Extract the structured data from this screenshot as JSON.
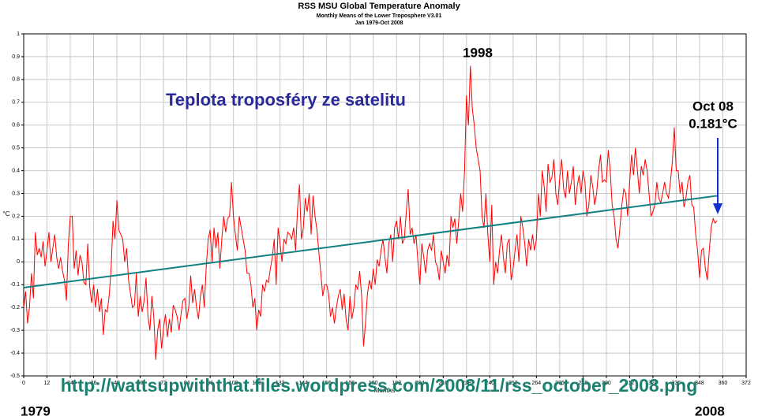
{
  "chart_data": {
    "type": "line",
    "title": "RSS MSU Global Temperature Anomaly",
    "subtitle": "Monthly Means of the Lower Troposphere V3.01",
    "date_range": "Jan 1979-Oct 2008",
    "xlabel": "Months",
    "ylabel": "°C",
    "annotations": [
      "Teplota troposféry ze satelitu",
      "1998",
      "Oct 08",
      "0.181°C",
      "http://wattsupwiththat.files.wordpress.com/2008/11/rss_october_2008.png",
      "1979",
      "2008"
    ],
    "xlim": [
      0,
      372
    ],
    "ylim": [
      -0.5,
      1
    ],
    "grid": true,
    "xticks": [
      0,
      12,
      24,
      36,
      48,
      60,
      72,
      84,
      96,
      108,
      120,
      132,
      144,
      156,
      168,
      180,
      192,
      204,
      216,
      228,
      240,
      252,
      264,
      276,
      288,
      300,
      312,
      324,
      336,
      348,
      360,
      372
    ],
    "yticks": [
      -0.5,
      -0.4,
      -0.3,
      -0.2,
      -0.1,
      0,
      0.1,
      0.2,
      0.3,
      0.4,
      0.5,
      0.6,
      0.7,
      0.8,
      0.9,
      1
    ],
    "x": [
      0,
      1,
      2,
      3,
      4,
      5,
      6,
      7,
      8,
      9,
      10,
      11,
      12,
      13,
      14,
      15,
      16,
      17,
      18,
      19,
      20,
      21,
      22,
      23,
      24,
      25,
      26,
      27,
      28,
      29,
      30,
      31,
      32,
      33,
      34,
      35,
      36,
      37,
      38,
      39,
      40,
      41,
      42,
      43,
      44,
      45,
      46,
      47,
      48,
      49,
      50,
      51,
      52,
      53,
      54,
      55,
      56,
      57,
      58,
      59,
      60,
      61,
      62,
      63,
      64,
      65,
      66,
      67,
      68,
      69,
      70,
      71,
      72,
      73,
      74,
      75,
      76,
      77,
      78,
      79,
      80,
      81,
      82,
      83,
      84,
      85,
      86,
      87,
      88,
      89,
      90,
      91,
      92,
      93,
      94,
      95,
      96,
      97,
      98,
      99,
      100,
      101,
      102,
      103,
      104,
      105,
      106,
      107,
      108,
      109,
      110,
      111,
      112,
      113,
      114,
      115,
      116,
      117,
      118,
      119,
      120,
      121,
      122,
      123,
      124,
      125,
      126,
      127,
      128,
      129,
      130,
      131,
      132,
      133,
      134,
      135,
      136,
      137,
      138,
      139,
      140,
      141,
      142,
      143,
      144,
      145,
      146,
      147,
      148,
      149,
      150,
      151,
      152,
      153,
      154,
      155,
      156,
      157,
      158,
      159,
      160,
      161,
      162,
      163,
      164,
      165,
      166,
      167,
      168,
      169,
      170,
      171,
      172,
      173,
      174,
      175,
      176,
      177,
      178,
      179,
      180,
      181,
      182,
      183,
      184,
      185,
      186,
      187,
      188,
      189,
      190,
      191,
      192,
      193,
      194,
      195,
      196,
      197,
      198,
      199,
      200,
      201,
      202,
      203,
      204,
      205,
      206,
      207,
      208,
      209,
      210,
      211,
      212,
      213,
      214,
      215,
      216,
      217,
      218,
      219,
      220,
      221,
      222,
      223,
      224,
      225,
      226,
      227,
      228,
      229,
      230,
      231,
      232,
      233,
      234,
      235,
      236,
      237,
      238,
      239,
      240,
      241,
      242,
      243,
      244,
      245,
      246,
      247,
      248,
      249,
      250,
      251,
      252,
      253,
      254,
      255,
      256,
      257,
      258,
      259,
      260,
      261,
      262,
      263,
      264,
      265,
      266,
      267,
      268,
      269,
      270,
      271,
      272,
      273,
      274,
      275,
      276,
      277,
      278,
      279,
      280,
      281,
      282,
      283,
      284,
      285,
      286,
      287,
      288,
      289,
      290,
      291,
      292,
      293,
      294,
      295,
      296,
      297,
      298,
      299,
      300,
      301,
      302,
      303,
      304,
      305,
      306,
      307,
      308,
      309,
      310,
      311,
      312,
      313,
      314,
      315,
      316,
      317,
      318,
      319,
      320,
      321,
      322,
      323,
      324,
      325,
      326,
      327,
      328,
      329,
      330,
      331,
      332,
      333,
      334,
      335,
      336,
      337,
      338,
      339,
      340,
      341,
      342,
      343,
      344,
      345,
      346,
      347,
      348,
      349,
      350,
      351,
      352,
      353,
      354,
      355,
      356,
      357
    ],
    "series": [
      {
        "color": "#ff0000",
        "values": [
          -0.2,
          -0.13,
          -0.27,
          -0.2,
          -0.05,
          -0.16,
          0.13,
          0.03,
          0.06,
          0.02,
          0.09,
          -0.02,
          0.05,
          0.13,
          0.0,
          0.06,
          0.12,
          0.02,
          -0.03,
          0.02,
          -0.04,
          -0.08,
          -0.17,
          0.08,
          0.2,
          0.2,
          -0.03,
          0.05,
          -0.06,
          0.03,
          0.0,
          -0.09,
          -0.1,
          0.08,
          -0.11,
          -0.18,
          -0.1,
          -0.2,
          -0.12,
          -0.22,
          -0.16,
          -0.32,
          -0.21,
          -0.22,
          -0.15,
          -0.03,
          0.18,
          0.1,
          0.27,
          0.14,
          0.12,
          0.1,
          0.0,
          0.06,
          -0.08,
          -0.14,
          -0.2,
          -0.19,
          -0.05,
          -0.24,
          -0.15,
          -0.22,
          -0.17,
          -0.07,
          -0.24,
          -0.3,
          -0.15,
          -0.24,
          -0.43,
          -0.3,
          -0.25,
          -0.38,
          -0.29,
          -0.23,
          -0.33,
          -0.25,
          -0.31,
          -0.19,
          -0.21,
          -0.24,
          -0.3,
          -0.23,
          -0.17,
          -0.16,
          -0.25,
          -0.2,
          -0.06,
          -0.18,
          -0.12,
          -0.2,
          -0.25,
          -0.15,
          -0.1,
          -0.2,
          -0.02,
          0.1,
          0.14,
          0.0,
          0.15,
          0.06,
          0.13,
          -0.03,
          0.1,
          0.2,
          0.13,
          0.19,
          0.2,
          0.35,
          0.2,
          0.12,
          0.05,
          0.2,
          0.15,
          0.1,
          0.05,
          -0.05,
          -0.05,
          -0.1,
          -0.2,
          -0.16,
          -0.3,
          -0.21,
          -0.24,
          -0.1,
          -0.13,
          -0.08,
          -0.09,
          -0.03,
          0.02,
          0.1,
          -0.1,
          0.15,
          0.08,
          0.0,
          0.1,
          0.08,
          0.13,
          0.12,
          0.1,
          0.15,
          0.05,
          0.23,
          0.34,
          0.1,
          0.15,
          0.28,
          0.22,
          0.3,
          0.12,
          0.29,
          0.2,
          0.14,
          0.04,
          -0.05,
          -0.15,
          -0.1,
          -0.1,
          -0.14,
          -0.24,
          -0.2,
          -0.27,
          -0.2,
          -0.15,
          -0.12,
          -0.21,
          -0.14,
          -0.25,
          -0.3,
          -0.15,
          -0.25,
          -0.2,
          -0.1,
          -0.12,
          -0.04,
          -0.15,
          -0.37,
          -0.27,
          -0.14,
          -0.08,
          -0.12,
          -0.03,
          -0.1,
          0.01,
          -0.02,
          0.05,
          0.1,
          0.02,
          -0.05,
          0.08,
          0.12,
          0.0,
          0.15,
          0.18,
          0.1,
          0.2,
          0.08,
          0.1,
          0.22,
          0.32,
          0.12,
          0.15,
          0.08,
          0.12,
          0.0,
          -0.1,
          0.08,
          0.02,
          -0.05,
          0.05,
          0.08,
          0.05,
          0.12,
          0.0,
          -0.02,
          -0.08,
          0.05,
          0.0,
          -0.05,
          0.03,
          -0.02,
          0.2,
          0.15,
          0.19,
          0.08,
          0.18,
          0.3,
          0.22,
          0.4,
          0.73,
          0.6,
          0.86,
          0.67,
          0.6,
          0.5,
          0.45,
          0.4,
          0.2,
          0.15,
          0.3,
          0.12,
          0.0,
          0.25,
          -0.1,
          0.0,
          -0.05,
          0.05,
          0.12,
          0.02,
          -0.05,
          0.08,
          0.1,
          -0.08,
          -0.03,
          0.05,
          0.12,
          0.0,
          0.2,
          0.15,
          0.08,
          -0.02,
          0.1,
          0.05,
          0.12,
          0.05,
          0.1,
          0.3,
          0.2,
          0.4,
          0.33,
          0.22,
          0.43,
          0.35,
          0.37,
          0.45,
          0.3,
          0.25,
          0.37,
          0.45,
          0.32,
          0.28,
          0.4,
          0.3,
          0.35,
          0.42,
          0.25,
          0.33,
          0.38,
          0.3,
          0.4,
          0.35,
          0.2,
          0.25,
          0.38,
          0.33,
          0.25,
          0.3,
          0.4,
          0.47,
          0.35,
          0.36,
          0.35,
          0.49,
          0.4,
          0.25,
          0.2,
          0.1,
          0.06,
          0.15,
          0.25,
          0.32,
          0.3,
          0.2,
          0.35,
          0.47,
          0.38,
          0.5,
          0.4,
          0.3,
          0.42,
          0.38,
          0.45,
          0.4,
          0.3,
          0.2,
          0.22,
          0.25,
          0.35,
          0.28,
          0.26,
          0.3,
          0.35,
          0.3,
          0.28,
          0.35,
          0.44,
          0.59,
          0.4,
          0.4,
          0.3,
          0.35,
          0.24,
          0.28,
          0.35,
          0.38,
          0.25,
          0.24,
          0.12,
          0.05,
          -0.07,
          0.05,
          0.06,
          -0.03,
          -0.08,
          0.05,
          0.15,
          0.19,
          0.17,
          0.181
        ]
      },
      {
        "color": "#108080",
        "x": [
          0,
          357
        ],
        "values": [
          -0.113,
          0.29
        ]
      }
    ]
  }
}
